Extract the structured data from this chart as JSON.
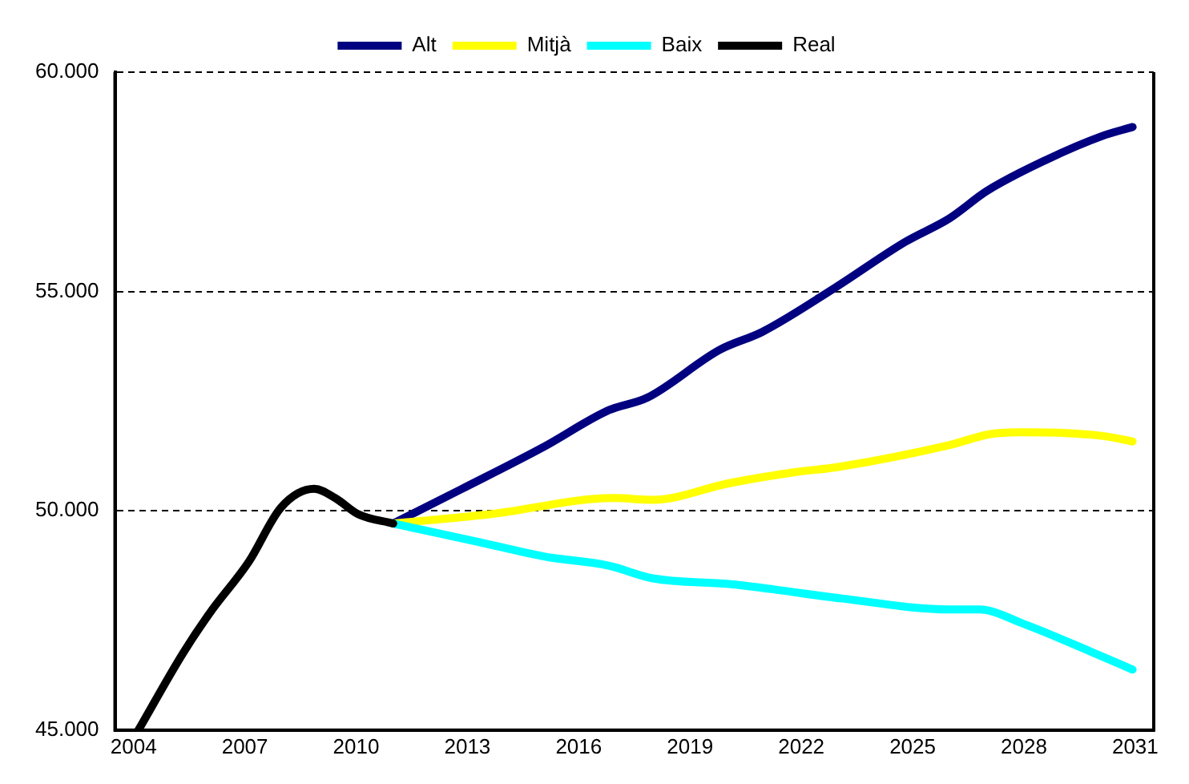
{
  "chart_data": {
    "type": "line",
    "xlim": [
      2003.5,
      2031.5
    ],
    "xticks": [
      2004,
      2007,
      2010,
      2013,
      2016,
      2019,
      2022,
      2025,
      2028,
      2031
    ],
    "ylim": [
      45000,
      60000
    ],
    "yticks": [
      {
        "value": 45000,
        "label": "45.000"
      },
      {
        "value": 50000,
        "label": "50.000"
      },
      {
        "value": 55000,
        "label": "55.000"
      },
      {
        "value": 60000,
        "label": "60.000"
      }
    ],
    "grid": "y",
    "legend": "top",
    "line_style": "solid",
    "marker": "none",
    "series": [
      {
        "name": "Alt",
        "color": "#000080",
        "x": [
          2011.0,
          2012.85,
          2015.06,
          2016.8,
          2017.85,
          2019.8,
          2020.95,
          2022.9,
          2024.8,
          2026.0,
          2027.0,
          2028.6,
          2030.1,
          2030.93
        ],
        "values": [
          49710,
          50500,
          51460,
          52290,
          52580,
          53670,
          54080,
          55080,
          56130,
          56670,
          57290,
          58000,
          58540,
          58750
        ]
      },
      {
        "name": "Mitjà",
        "color": "#ffff00",
        "x": [
          2011.0,
          2013.6,
          2016.96,
          2018.0,
          2020.06,
          2021.83,
          2023.0,
          2026.0,
          2027.1,
          2028.0,
          2030.1,
          2030.93
        ],
        "values": [
          49710,
          49920,
          50290,
          50250,
          50630,
          50880,
          51000,
          51500,
          51750,
          51790,
          51710,
          51580
        ]
      },
      {
        "name": "Baix",
        "color": "#00ffff",
        "x": [
          2011.0,
          2013.3,
          2015.06,
          2016.8,
          2018.0,
          2020.06,
          2021.24,
          2023.1,
          2026.0,
          2026.8,
          2028.0,
          2029.8,
          2030.93
        ],
        "values": [
          49710,
          49290,
          48960,
          48750,
          48460,
          48330,
          48210,
          48000,
          47750,
          47750,
          47420,
          46790,
          46380
        ]
      },
      {
        "name": "Real",
        "color": "#000000",
        "x": [
          2004.13,
          2005.33,
          2006.08,
          2007.1,
          2007.98,
          2008.87,
          2009.44,
          2010.06,
          2011.0
        ],
        "values": [
          45000,
          46750,
          47700,
          48830,
          50080,
          50500,
          50290,
          49920,
          49710
        ]
      }
    ]
  }
}
